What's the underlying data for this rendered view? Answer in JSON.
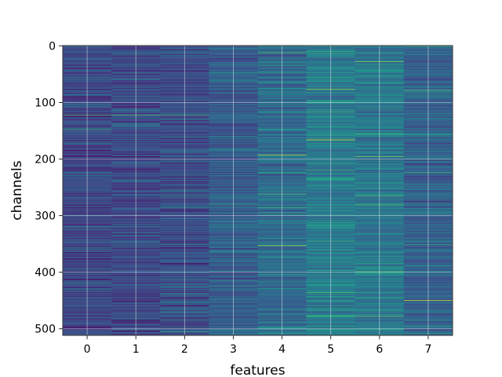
{
  "chart_data": {
    "type": "heatmap",
    "title": "",
    "xlabel": "features",
    "ylabel": "channels",
    "x_categories": [
      "0",
      "1",
      "2",
      "3",
      "4",
      "5",
      "6",
      "7"
    ],
    "y_ticks": [
      "0",
      "100",
      "200",
      "300",
      "400",
      "500"
    ],
    "y_tick_values": [
      0,
      100,
      200,
      300,
      400,
      500
    ],
    "rows": 512,
    "columns": 8,
    "ylim": [
      511.5,
      -0.5
    ],
    "xlim": [
      -0.5,
      7.5
    ],
    "colormap": "viridis",
    "grid": true,
    "legend": "none",
    "column_mean_level": [
      0.22,
      0.22,
      0.24,
      0.3,
      0.36,
      0.42,
      0.4,
      0.32
    ],
    "highlight_rows": [
      {
        "column": 0,
        "row": 122,
        "value": 0.72
      },
      {
        "column": 1,
        "row": 122,
        "value": 0.72
      },
      {
        "column": 2,
        "row": 122,
        "value": 0.7
      },
      {
        "column": 3,
        "row": 280,
        "value": 0.62
      },
      {
        "column": 4,
        "row": 193,
        "value": 0.88
      },
      {
        "column": 4,
        "row": 262,
        "value": 0.72
      },
      {
        "column": 4,
        "row": 353,
        "value": 0.85
      },
      {
        "column": 5,
        "row": 77,
        "value": 0.85
      },
      {
        "column": 5,
        "row": 166,
        "value": 0.95
      },
      {
        "column": 5,
        "row": 220,
        "value": 0.7
      },
      {
        "column": 6,
        "row": 28,
        "value": 0.82
      },
      {
        "column": 6,
        "row": 196,
        "value": 0.8
      },
      {
        "column": 6,
        "row": 265,
        "value": 0.72
      },
      {
        "column": 6,
        "row": 478,
        "value": 0.75
      },
      {
        "column": 7,
        "row": 78,
        "value": 0.72
      },
      {
        "column": 7,
        "row": 224,
        "value": 0.68
      },
      {
        "column": 7,
        "row": 450,
        "value": 0.95
      }
    ]
  }
}
